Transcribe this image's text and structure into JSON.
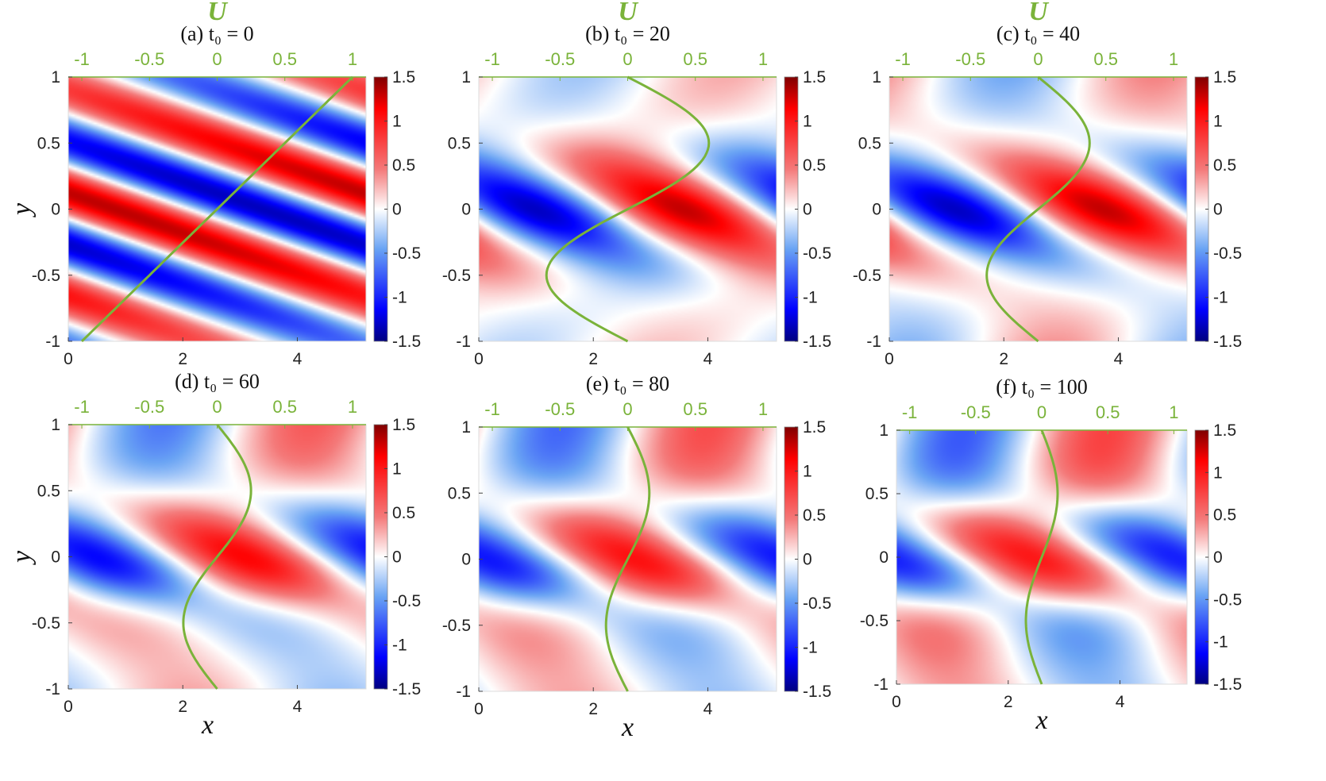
{
  "colors": {
    "u_curve": "#7ab33a",
    "cmap_low": "#00007f",
    "cmap_mid": "#ffffff",
    "cmap_high": "#7f0000"
  },
  "chart_data": [
    {
      "type": "heatmap",
      "panel": "a",
      "title": "(a) t₀ = 0",
      "top_label": "U",
      "xlabel": "",
      "ylabel": "y",
      "xlim": [
        0,
        5.2
      ],
      "ylim": [
        -1,
        1
      ],
      "u_lim": [
        -1.1,
        1.1
      ],
      "x_ticks": [
        "0",
        "2",
        "4"
      ],
      "y_ticks": [
        "-1",
        "-0.5",
        "0",
        "0.5",
        "1"
      ],
      "u_ticks": [
        "-1",
        "-0.5",
        "0",
        "0.5",
        "1"
      ],
      "colorbar": {
        "ticks": [
          "-1.5",
          "-1",
          "-0.5",
          "0",
          "0.5",
          "1",
          "1.5"
        ],
        "min": -1.5,
        "max": 1.5
      },
      "profile": {
        "name": "U",
        "y": [
          -1,
          -0.5,
          0,
          0.5,
          1
        ],
        "u": [
          -1,
          -0.5,
          0,
          0.5,
          1
        ]
      }
    },
    {
      "type": "heatmap",
      "panel": "b",
      "title": "(b) t₀ = 20",
      "top_label": "U",
      "xlabel": "",
      "ylabel": "",
      "xlim": [
        0,
        5.2
      ],
      "ylim": [
        -1,
        1
      ],
      "u_lim": [
        -1.1,
        1.1
      ],
      "x_ticks": [
        "0",
        "2",
        "4"
      ],
      "y_ticks": [
        "-1",
        "-0.5",
        "0",
        "0.5",
        "1"
      ],
      "u_ticks": [
        "-1",
        "-0.5",
        "0",
        "0.5",
        "1"
      ],
      "colorbar": {
        "ticks": [
          "-1.5",
          "-1",
          "-0.5",
          "0",
          "0.5",
          "1",
          "1.5"
        ],
        "min": -1.5,
        "max": 1.5
      },
      "profile": {
        "name": "U",
        "y": [
          -1,
          -0.5,
          0,
          0.5,
          1
        ],
        "u": [
          0,
          -0.6,
          0,
          0.6,
          0.15
        ]
      }
    },
    {
      "type": "heatmap",
      "panel": "c",
      "title": "(c) t₀ = 40",
      "top_label": "U",
      "xlabel": "",
      "ylabel": "",
      "xlim": [
        0,
        5.2
      ],
      "ylim": [
        -1,
        1
      ],
      "u_lim": [
        -1.1,
        1.1
      ],
      "x_ticks": [
        "0",
        "2",
        "4"
      ],
      "y_ticks": [
        "-1",
        "-0.5",
        "0",
        "0.5",
        "1"
      ],
      "u_ticks": [
        "-1",
        "-0.5",
        "0",
        "0.5",
        "1"
      ],
      "colorbar": {
        "ticks": [
          "-1.5",
          "-1",
          "-0.5",
          "0",
          "0.5",
          "1",
          "1.5"
        ],
        "min": -1.5,
        "max": 1.5
      },
      "profile": {
        "name": "U",
        "y": [
          -1,
          -0.5,
          0,
          0.5,
          1
        ],
        "u": [
          0,
          -0.38,
          0,
          0.38,
          0
        ]
      }
    },
    {
      "type": "heatmap",
      "panel": "d",
      "title": "(d) t₀ = 60",
      "top_label": "",
      "xlabel": "x",
      "ylabel": "y",
      "xlim": [
        0,
        5.2
      ],
      "ylim": [
        -1,
        1
      ],
      "u_lim": [
        -1.1,
        1.1
      ],
      "x_ticks": [
        "0",
        "2",
        "4"
      ],
      "y_ticks": [
        "-1",
        "-0.5",
        "0",
        "0.5",
        "1"
      ],
      "u_ticks": [
        "-1",
        "-0.5",
        "0",
        "0.5",
        "1"
      ],
      "colorbar": {
        "ticks": [
          "-1.5",
          "-1",
          "-0.5",
          "0",
          "0.5",
          "1",
          "1.5"
        ],
        "min": -1.5,
        "max": 1.5
      },
      "profile": {
        "name": "U",
        "y": [
          -1,
          -0.5,
          0,
          0.5,
          1
        ],
        "u": [
          0,
          -0.25,
          0,
          0.25,
          0
        ]
      }
    },
    {
      "type": "heatmap",
      "panel": "e",
      "title": "(e) t₀ = 80",
      "top_label": "",
      "xlabel": "x",
      "ylabel": "",
      "xlim": [
        0,
        5.2
      ],
      "ylim": [
        -1,
        1
      ],
      "u_lim": [
        -1.1,
        1.1
      ],
      "x_ticks": [
        "0",
        "2",
        "4"
      ],
      "y_ticks": [
        "-1",
        "-0.5",
        "0",
        "0.5",
        "1"
      ],
      "u_ticks": [
        "-1",
        "-0.5",
        "0",
        "0.5",
        "1"
      ],
      "colorbar": {
        "ticks": [
          "-1.5",
          "-1",
          "-0.5",
          "0",
          "0.5",
          "1",
          "1.5"
        ],
        "min": -1.5,
        "max": 1.5
      },
      "profile": {
        "name": "U",
        "y": [
          -1,
          -0.5,
          0,
          0.5,
          1
        ],
        "u": [
          0,
          -0.16,
          0,
          0.16,
          0
        ]
      }
    },
    {
      "type": "heatmap",
      "panel": "f",
      "title": "(f) t₀ = 100",
      "top_label": "",
      "xlabel": "x",
      "ylabel": "",
      "xlim": [
        0,
        5.2
      ],
      "ylim": [
        -1,
        1
      ],
      "u_lim": [
        -1.1,
        1.1
      ],
      "x_ticks": [
        "0",
        "2",
        "4"
      ],
      "y_ticks": [
        "-1",
        "-0.5",
        "0",
        "0.5",
        "1"
      ],
      "u_ticks": [
        "-1",
        "-0.5",
        "0",
        "0.5",
        "1"
      ],
      "colorbar": {
        "ticks": [
          "-1.5",
          "-1",
          "-0.5",
          "0",
          "0.5",
          "1",
          "1.5"
        ],
        "min": -1.5,
        "max": 1.5
      },
      "profile": {
        "name": "U",
        "y": [
          -1,
          -0.5,
          0,
          0.5,
          1
        ],
        "u": [
          0,
          -0.12,
          0,
          0.12,
          0
        ]
      }
    }
  ]
}
